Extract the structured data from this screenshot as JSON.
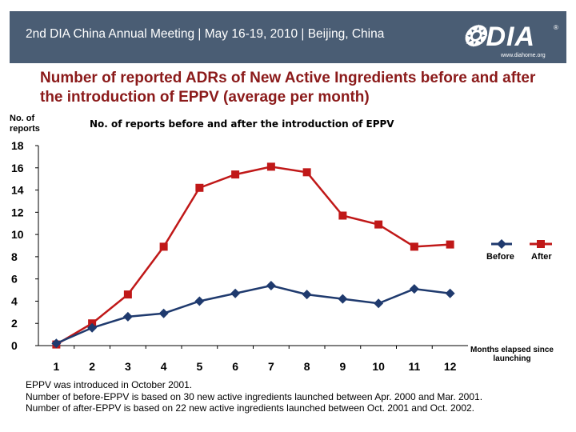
{
  "header": {
    "text": "2nd DIA China Annual Meeting | May 16-19, 2010 | Beijing, China",
    "logo_text": "DIA",
    "logo_mark": "®",
    "logo_url": "www.diahome.org"
  },
  "slide_title": "Number of reported ADRs of New Active Ingredients before and after the introduction of EPPV (average per month)",
  "chart_data": {
    "type": "line",
    "title": "No. of reports before and after the introduction of EPPV",
    "ylabel": "No. of reports",
    "xlabel": "Months elapsed since launching",
    "categories": [
      "1",
      "2",
      "3",
      "4",
      "5",
      "6",
      "7",
      "8",
      "9",
      "10",
      "11",
      "12"
    ],
    "y_ticks": [
      "18",
      "16",
      "14",
      "12",
      "10",
      "8",
      "6",
      "4",
      "2",
      "0"
    ],
    "ylim": [
      0,
      18
    ],
    "grid": false,
    "legend_position": "right",
    "series": [
      {
        "name": "Before",
        "color": "#1f3a6e",
        "marker": "diamond",
        "values": [
          0.2,
          1.6,
          2.6,
          2.9,
          4.0,
          4.7,
          5.4,
          4.6,
          4.2,
          3.8,
          5.1,
          4.7
        ]
      },
      {
        "name": "After",
        "color": "#c01818",
        "marker": "square",
        "values": [
          0.1,
          2.0,
          4.6,
          8.9,
          14.2,
          15.4,
          16.1,
          15.6,
          11.7,
          10.9,
          8.9,
          9.1
        ]
      }
    ]
  },
  "notes": [
    "EPPV was introduced in October 2001.",
    "Number of before-EPPV is based on 30 new active ingredients launched between Apr. 2000 and Mar. 2001.",
    "Number of after-EPPV is based on 22 new active ingredients launched between Oct. 2001 and Oct. 2002."
  ]
}
